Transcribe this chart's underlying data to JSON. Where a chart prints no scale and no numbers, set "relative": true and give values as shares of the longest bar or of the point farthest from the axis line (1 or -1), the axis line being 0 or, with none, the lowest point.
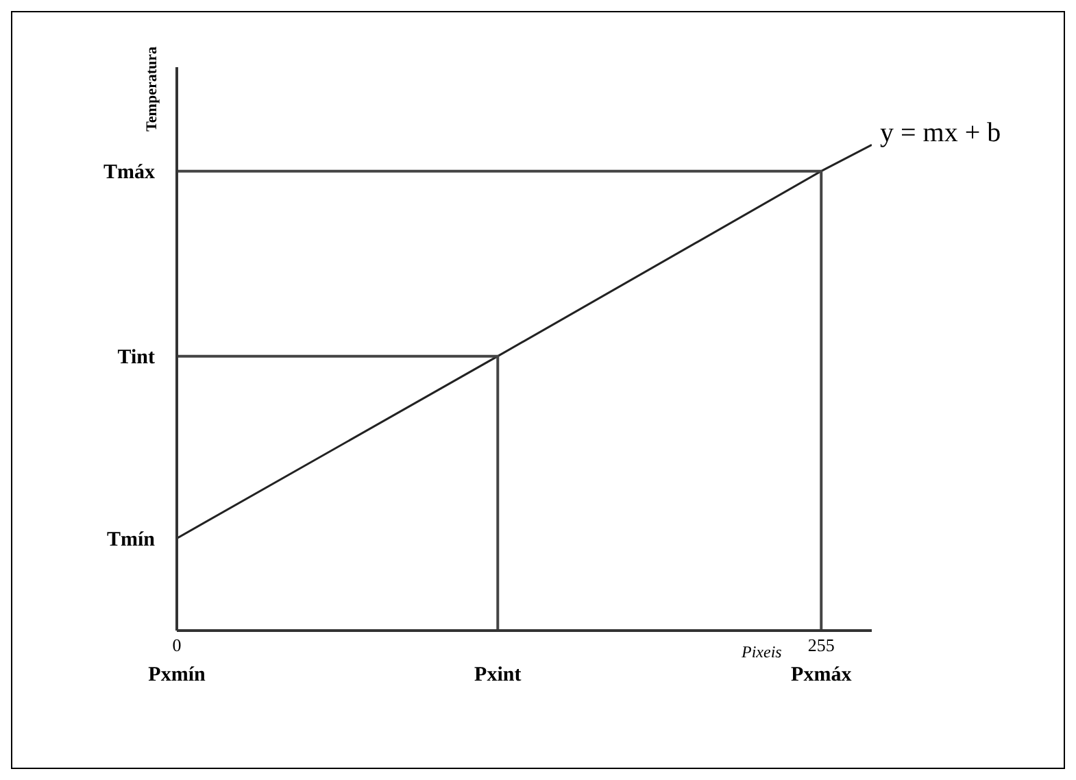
{
  "chart_data": {
    "type": "line",
    "relative": true,
    "xlabel": "Pixeis",
    "ylabel": "Temperatura",
    "x": [
      0,
      127,
      255,
      275
    ],
    "series": [
      {
        "color": "#222222",
        "values": [
          0.19,
          0.565,
          0.946,
          1
        ]
      },
      {
        "type": "line",
        "color": "#444444",
        "x": [
          0,
          127,
          127
        ],
        "values": [
          0.565,
          0.565,
          0
        ]
      },
      {
        "type": "line",
        "color": "#444444",
        "x": [
          0,
          255,
          255
        ],
        "values": [
          0.946,
          0.946,
          0
        ]
      }
    ],
    "xlim": [
      0,
      275
    ],
    "xticks": [
      0,
      255
    ],
    "annotations": [
      {
        "text": "y = mx + b",
        "x": 275,
        "y": 1
      },
      {
        "text": "Tmín",
        "x": 0,
        "y": 0.19
      },
      {
        "text": "Tint",
        "x": 0,
        "y": 0.565
      },
      {
        "text": "Tmáx",
        "x": 0,
        "y": 0.946
      },
      "Pxmín",
      {
        "text": "Pxint",
        "x": 127,
        "y": 0
      },
      {
        "text": "Pxmáx",
        "x": 255,
        "y": 0
      }
    ],
    "marker": "none",
    "grid": false
  }
}
